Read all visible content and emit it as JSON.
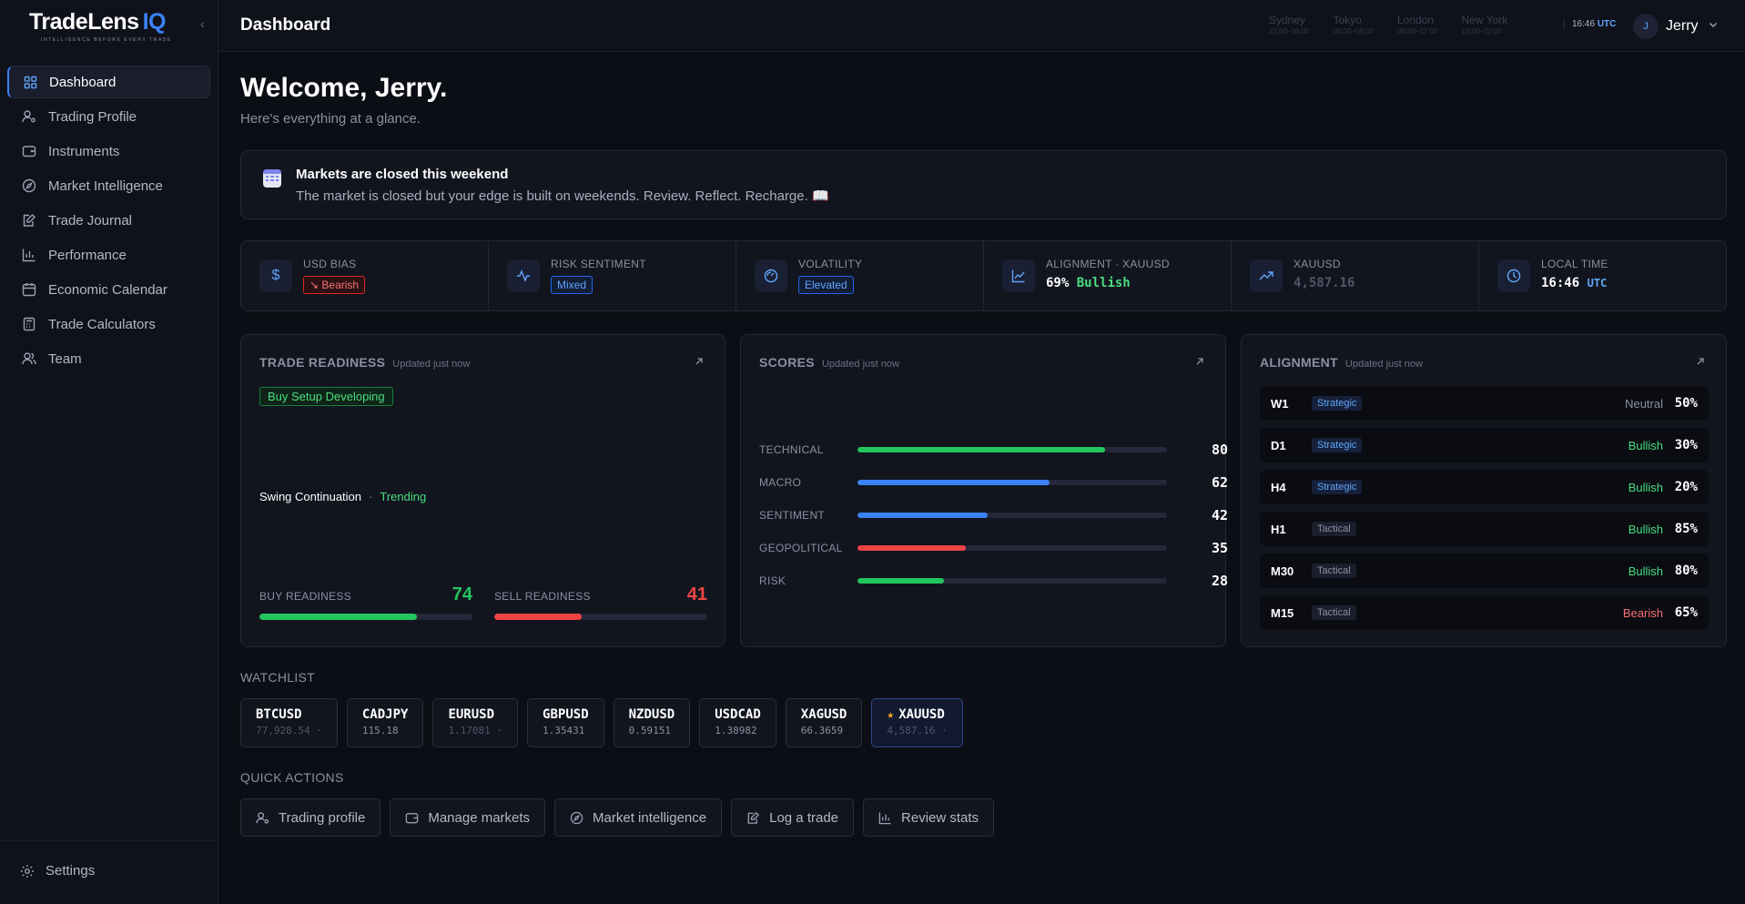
{
  "brand": {
    "name": "TradeLens",
    "suffix": "IQ",
    "tagline": "INTELLIGENCE BEFORE EVERY TRADE"
  },
  "sidebar": {
    "items": [
      {
        "label": "Dashboard",
        "icon": "grid-icon",
        "active": true
      },
      {
        "label": "Trading Profile",
        "icon": "user-settings-icon"
      },
      {
        "label": "Instruments",
        "icon": "wallet-icon"
      },
      {
        "label": "Market Intelligence",
        "icon": "compass-icon"
      },
      {
        "label": "Trade Journal",
        "icon": "journal-edit-icon"
      },
      {
        "label": "Performance",
        "icon": "bar-chart-icon"
      },
      {
        "label": "Economic Calendar",
        "icon": "calendar-icon"
      },
      {
        "label": "Trade Calculators",
        "icon": "calculator-icon"
      },
      {
        "label": "Team",
        "icon": "team-icon"
      }
    ],
    "settings_label": "Settings"
  },
  "header": {
    "title": "Dashboard",
    "sessions": [
      {
        "name": "Sydney",
        "time": "22:00–06:00"
      },
      {
        "name": "Tokyo",
        "time": "00:00–09:00"
      },
      {
        "name": "London",
        "time": "08:00–17:00"
      },
      {
        "name": "New York",
        "time": "13:00–22:00"
      }
    ],
    "clock_time": "16:46",
    "clock_zone": "UTC",
    "user_initial": "J",
    "user_name": "Jerry"
  },
  "welcome": {
    "title": "Welcome, Jerry.",
    "subtitle": "Here's everything at a glance."
  },
  "notice": {
    "title": "Markets are closed this weekend",
    "text": "The market is closed but your edge is built on weekends. Review. Reflect. Recharge. 📖"
  },
  "stats": {
    "usd_bias": {
      "label": "USD BIAS",
      "value": "Bearish"
    },
    "risk": {
      "label": "RISK SENTIMENT",
      "value": "Mixed"
    },
    "volatility": {
      "label": "VOLATILITY",
      "value": "Elevated"
    },
    "alignment": {
      "label": "ALIGNMENT · XAUUSD",
      "pct": "69%",
      "dir": "Bullish"
    },
    "xauusd": {
      "label": "XAUUSD",
      "value": "4,587.16"
    },
    "local_time": {
      "label": "LOCAL TIME",
      "time": "16:46",
      "zone": "UTC"
    }
  },
  "readiness": {
    "title": "TRADE READINESS",
    "updated": "Updated just now",
    "badge": "Buy Setup Developing",
    "setup": "Swing Continuation",
    "state": "Trending",
    "buy_label": "BUY READINESS",
    "buy_value": "74",
    "buy_level": 74,
    "sell_label": "SELL READINESS",
    "sell_value": "41",
    "sell_level": 41
  },
  "scores": {
    "title": "SCORES",
    "updated": "Updated just now",
    "rows": [
      {
        "label": "TECHNICAL",
        "value": "80",
        "level": 80,
        "color": "#22c55e"
      },
      {
        "label": "MACRO",
        "value": "62",
        "level": 62,
        "color": "#3b82f6"
      },
      {
        "label": "SENTIMENT",
        "value": "42",
        "level": 42,
        "color": "#3b82f6"
      },
      {
        "label": "GEOPOLITICAL",
        "value": "35",
        "level": 35,
        "color": "#ef4444"
      },
      {
        "label": "RISK",
        "value": "28",
        "level": 28,
        "color": "#22c55e"
      }
    ]
  },
  "alignment": {
    "title": "ALIGNMENT",
    "updated": "Updated just now",
    "rows": [
      {
        "tf": "W1",
        "tag": "Strategic",
        "dir": "Neutral",
        "pct": "50%",
        "color": "#8a90a3"
      },
      {
        "tf": "D1",
        "tag": "Strategic",
        "dir": "Bullish",
        "pct": "30%",
        "color": "#4ade80"
      },
      {
        "tf": "H4",
        "tag": "Strategic",
        "dir": "Bullish",
        "pct": "20%",
        "color": "#4ade80"
      },
      {
        "tf": "H1",
        "tag": "Tactical",
        "dir": "Bullish",
        "pct": "85%",
        "color": "#4ade80"
      },
      {
        "tf": "M30",
        "tag": "Tactical",
        "dir": "Bullish",
        "pct": "80%",
        "color": "#4ade80"
      },
      {
        "tf": "M15",
        "tag": "Tactical",
        "dir": "Bearish",
        "pct": "65%",
        "color": "#f87171"
      }
    ]
  },
  "watchlist": {
    "label": "WATCHLIST",
    "items": [
      {
        "sym": "BTCUSD",
        "price": "77,928.54 ·",
        "dim": true
      },
      {
        "sym": "CADJPY",
        "price": "115.18"
      },
      {
        "sym": "EURUSD",
        "price": "1.17081 ·",
        "dim": true
      },
      {
        "sym": "GBPUSD",
        "price": "1.35431"
      },
      {
        "sym": "NZDUSD",
        "price": "0.59151"
      },
      {
        "sym": "USDCAD",
        "price": "1.38982"
      },
      {
        "sym": "XAGUSD",
        "price": "66.3659"
      },
      {
        "sym": "XAUUSD",
        "price": "4,587.16 ·",
        "dim": true,
        "starred": true,
        "active": true
      }
    ]
  },
  "quick_actions": {
    "label": "QUICK ACTIONS",
    "items": [
      {
        "label": "Trading profile",
        "icon": "user-settings-icon"
      },
      {
        "label": "Manage markets",
        "icon": "wallet-icon"
      },
      {
        "label": "Market intelligence",
        "icon": "compass-icon"
      },
      {
        "label": "Log a trade",
        "icon": "journal-edit-icon"
      },
      {
        "label": "Review stats",
        "icon": "bar-chart-icon"
      }
    ]
  },
  "colors": {
    "accent": "#3b82f6",
    "bull": "#22c55e",
    "bear": "#ef4444",
    "bg": "#0c0e15"
  }
}
